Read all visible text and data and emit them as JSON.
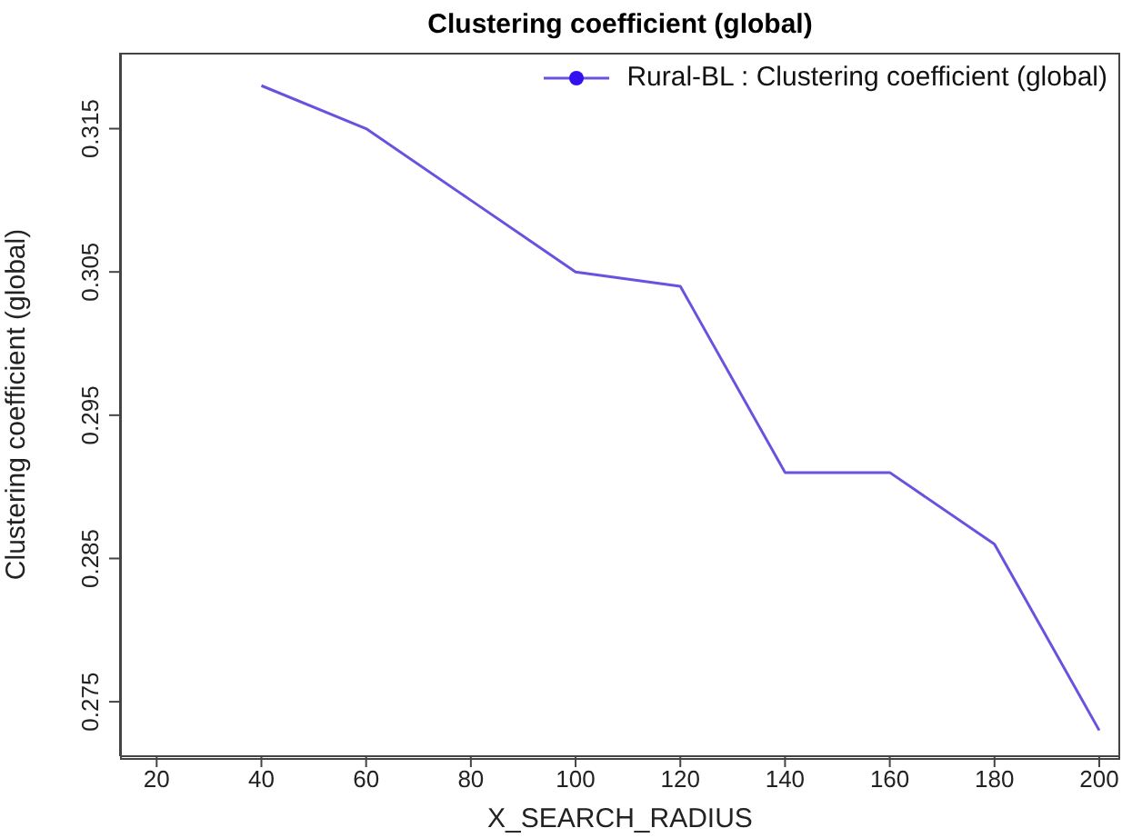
{
  "chart_data": {
    "type": "line",
    "title": "Clustering coefficient (global)",
    "xlabel": "X_SEARCH_RADIUS",
    "ylabel": "Clustering coefficient (global)",
    "x": [
      40,
      60,
      80,
      100,
      120,
      140,
      160,
      180,
      200
    ],
    "series": [
      {
        "name": "Rural-BL :  Clustering coefficient (global)",
        "color": "#6a52e0",
        "values": [
          0.318,
          0.315,
          0.31,
          0.305,
          0.304,
          0.291,
          0.291,
          0.286,
          0.273
        ]
      }
    ],
    "xlim": [
      13,
      204
    ],
    "xticks": [
      20,
      40,
      60,
      80,
      100,
      120,
      140,
      160,
      180,
      200
    ],
    "ylim": [
      0.2712,
      0.3203
    ],
    "yticks": [
      0.275,
      0.285,
      0.295,
      0.305,
      0.315
    ],
    "legend": "top right",
    "marker": "none",
    "grid": false
  }
}
